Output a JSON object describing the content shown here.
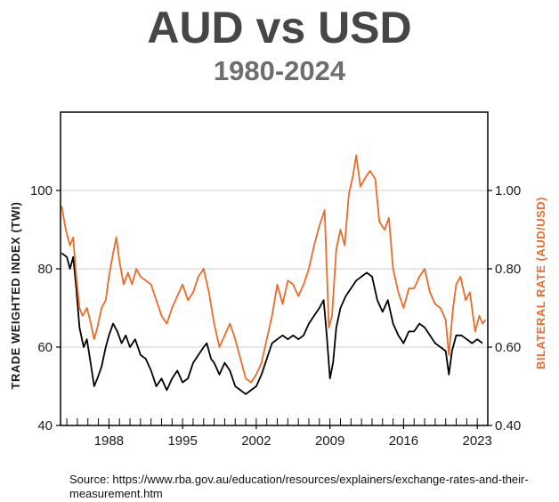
{
  "header": {
    "title": "AUD vs USD",
    "subtitle": "1980-2024"
  },
  "footer": {
    "source": "Source: https://www.rba.gov.au/education/resources/explainers/exchange-rates-and-their-measurement.htm"
  },
  "colors": {
    "twi_line": "#000000",
    "bilateral_line": "#ee6a28",
    "grid": "#cfcfcf",
    "frame": "#000000"
  },
  "chart_data": {
    "type": "line",
    "title": "AUD vs USD",
    "subtitle": "1980-2024",
    "xlabel": "",
    "x_ticks": [
      "1988",
      "1995",
      "2002",
      "2009",
      "2016",
      "2023"
    ],
    "xlim": [
      1983.4,
      2024.0
    ],
    "y_left": {
      "label": "TRADE WEIGHTED INDEX (TWI)",
      "ticks": [
        "40",
        "60",
        "80",
        "100"
      ],
      "lim": [
        40,
        120
      ]
    },
    "y_right": {
      "label": "BILATERAL RATE (AUD/USD)",
      "ticks": [
        "0.40",
        "0.60",
        "0.80",
        "1.00"
      ],
      "lim": [
        0.4,
        1.2
      ]
    },
    "grid": "horizontal",
    "series": [
      {
        "name": "TRADE WEIGHTED INDEX (TWI)",
        "axis": "left",
        "color": "#000000",
        "points": [
          [
            1983.5,
            84
          ],
          [
            1984.0,
            83
          ],
          [
            1984.3,
            80
          ],
          [
            1984.6,
            83
          ],
          [
            1984.9,
            75
          ],
          [
            1985.2,
            65
          ],
          [
            1985.6,
            60
          ],
          [
            1985.9,
            62
          ],
          [
            1986.2,
            57
          ],
          [
            1986.6,
            50
          ],
          [
            1986.9,
            52
          ],
          [
            1987.3,
            55
          ],
          [
            1987.7,
            60
          ],
          [
            1988.0,
            63
          ],
          [
            1988.4,
            66
          ],
          [
            1988.8,
            64
          ],
          [
            1989.2,
            61
          ],
          [
            1989.6,
            63
          ],
          [
            1990.0,
            60
          ],
          [
            1990.5,
            62
          ],
          [
            1991.0,
            58
          ],
          [
            1991.5,
            57
          ],
          [
            1992.0,
            54
          ],
          [
            1992.5,
            50
          ],
          [
            1993.0,
            52
          ],
          [
            1993.5,
            49
          ],
          [
            1994.0,
            52
          ],
          [
            1994.5,
            54
          ],
          [
            1995.0,
            51
          ],
          [
            1995.5,
            52
          ],
          [
            1996.0,
            56
          ],
          [
            1996.5,
            58
          ],
          [
            1997.0,
            60
          ],
          [
            1997.3,
            61
          ],
          [
            1997.7,
            57
          ],
          [
            1998.0,
            56
          ],
          [
            1998.5,
            53
          ],
          [
            1999.0,
            56
          ],
          [
            1999.5,
            54
          ],
          [
            2000.0,
            50
          ],
          [
            2000.5,
            49
          ],
          [
            2001.0,
            48
          ],
          [
            2001.5,
            49
          ],
          [
            2002.0,
            50
          ],
          [
            2002.5,
            53
          ],
          [
            2003.0,
            57
          ],
          [
            2003.5,
            61
          ],
          [
            2004.0,
            62
          ],
          [
            2004.5,
            63
          ],
          [
            2005.0,
            62
          ],
          [
            2005.5,
            63
          ],
          [
            2006.0,
            62
          ],
          [
            2006.5,
            63
          ],
          [
            2007.0,
            66
          ],
          [
            2007.5,
            68
          ],
          [
            2008.0,
            70
          ],
          [
            2008.4,
            72
          ],
          [
            2008.7,
            63
          ],
          [
            2009.0,
            52
          ],
          [
            2009.3,
            56
          ],
          [
            2009.6,
            65
          ],
          [
            2010.0,
            70
          ],
          [
            2010.5,
            73
          ],
          [
            2011.0,
            75
          ],
          [
            2011.5,
            77
          ],
          [
            2012.0,
            78
          ],
          [
            2012.5,
            79
          ],
          [
            2013.0,
            78
          ],
          [
            2013.5,
            72
          ],
          [
            2014.0,
            69
          ],
          [
            2014.5,
            72
          ],
          [
            2015.0,
            66
          ],
          [
            2015.5,
            63
          ],
          [
            2016.0,
            61
          ],
          [
            2016.5,
            64
          ],
          [
            2017.0,
            64
          ],
          [
            2017.5,
            66
          ],
          [
            2018.0,
            65
          ],
          [
            2018.5,
            63
          ],
          [
            2019.0,
            61
          ],
          [
            2019.5,
            60
          ],
          [
            2020.0,
            59
          ],
          [
            2020.3,
            53
          ],
          [
            2020.6,
            59
          ],
          [
            2021.0,
            63
          ],
          [
            2021.5,
            63
          ],
          [
            2022.0,
            62
          ],
          [
            2022.5,
            61
          ],
          [
            2023.0,
            62
          ],
          [
            2023.5,
            61
          ]
        ]
      },
      {
        "name": "BILATERAL RATE (AUD/USD)",
        "axis": "right",
        "color": "#ee6a28",
        "points": [
          [
            1983.5,
            0.96
          ],
          [
            1983.9,
            0.9
          ],
          [
            1984.3,
            0.86
          ],
          [
            1984.6,
            0.88
          ],
          [
            1984.9,
            0.78
          ],
          [
            1985.2,
            0.7
          ],
          [
            1985.5,
            0.68
          ],
          [
            1985.9,
            0.7
          ],
          [
            1986.2,
            0.67
          ],
          [
            1986.6,
            0.62
          ],
          [
            1986.9,
            0.65
          ],
          [
            1987.3,
            0.7
          ],
          [
            1987.7,
            0.72
          ],
          [
            1988.0,
            0.78
          ],
          [
            1988.4,
            0.84
          ],
          [
            1988.7,
            0.88
          ],
          [
            1989.0,
            0.82
          ],
          [
            1989.4,
            0.76
          ],
          [
            1989.8,
            0.79
          ],
          [
            1990.2,
            0.76
          ],
          [
            1990.6,
            0.8
          ],
          [
            1991.0,
            0.78
          ],
          [
            1991.5,
            0.77
          ],
          [
            1992.0,
            0.76
          ],
          [
            1992.5,
            0.72
          ],
          [
            1993.0,
            0.68
          ],
          [
            1993.5,
            0.66
          ],
          [
            1994.0,
            0.7
          ],
          [
            1994.5,
            0.73
          ],
          [
            1995.0,
            0.76
          ],
          [
            1995.5,
            0.72
          ],
          [
            1996.0,
            0.74
          ],
          [
            1996.5,
            0.78
          ],
          [
            1997.0,
            0.8
          ],
          [
            1997.5,
            0.74
          ],
          [
            1998.0,
            0.66
          ],
          [
            1998.5,
            0.6
          ],
          [
            1999.0,
            0.63
          ],
          [
            1999.5,
            0.66
          ],
          [
            2000.0,
            0.62
          ],
          [
            2000.5,
            0.57
          ],
          [
            2001.0,
            0.52
          ],
          [
            2001.5,
            0.51
          ],
          [
            2002.0,
            0.53
          ],
          [
            2002.5,
            0.56
          ],
          [
            2003.0,
            0.62
          ],
          [
            2003.5,
            0.68
          ],
          [
            2004.0,
            0.76
          ],
          [
            2004.5,
            0.71
          ],
          [
            2005.0,
            0.77
          ],
          [
            2005.5,
            0.76
          ],
          [
            2006.0,
            0.73
          ],
          [
            2006.5,
            0.76
          ],
          [
            2007.0,
            0.8
          ],
          [
            2007.5,
            0.86
          ],
          [
            2008.0,
            0.91
          ],
          [
            2008.5,
            0.95
          ],
          [
            2008.9,
            0.65
          ],
          [
            2009.2,
            0.68
          ],
          [
            2009.6,
            0.85
          ],
          [
            2010.0,
            0.9
          ],
          [
            2010.4,
            0.86
          ],
          [
            2010.8,
            0.99
          ],
          [
            2011.2,
            1.04
          ],
          [
            2011.5,
            1.09
          ],
          [
            2011.9,
            1.01
          ],
          [
            2012.3,
            1.03
          ],
          [
            2012.8,
            1.05
          ],
          [
            2013.3,
            1.03
          ],
          [
            2013.7,
            0.92
          ],
          [
            2014.2,
            0.9
          ],
          [
            2014.6,
            0.93
          ],
          [
            2015.0,
            0.8
          ],
          [
            2015.5,
            0.74
          ],
          [
            2016.0,
            0.7
          ],
          [
            2016.5,
            0.75
          ],
          [
            2017.0,
            0.75
          ],
          [
            2017.5,
            0.78
          ],
          [
            2018.0,
            0.8
          ],
          [
            2018.5,
            0.74
          ],
          [
            2019.0,
            0.71
          ],
          [
            2019.5,
            0.7
          ],
          [
            2020.0,
            0.67
          ],
          [
            2020.3,
            0.58
          ],
          [
            2020.7,
            0.7
          ],
          [
            2021.0,
            0.76
          ],
          [
            2021.4,
            0.78
          ],
          [
            2021.9,
            0.72
          ],
          [
            2022.3,
            0.74
          ],
          [
            2022.8,
            0.64
          ],
          [
            2023.2,
            0.68
          ],
          [
            2023.5,
            0.66
          ],
          [
            2023.8,
            0.67
          ]
        ]
      }
    ]
  }
}
